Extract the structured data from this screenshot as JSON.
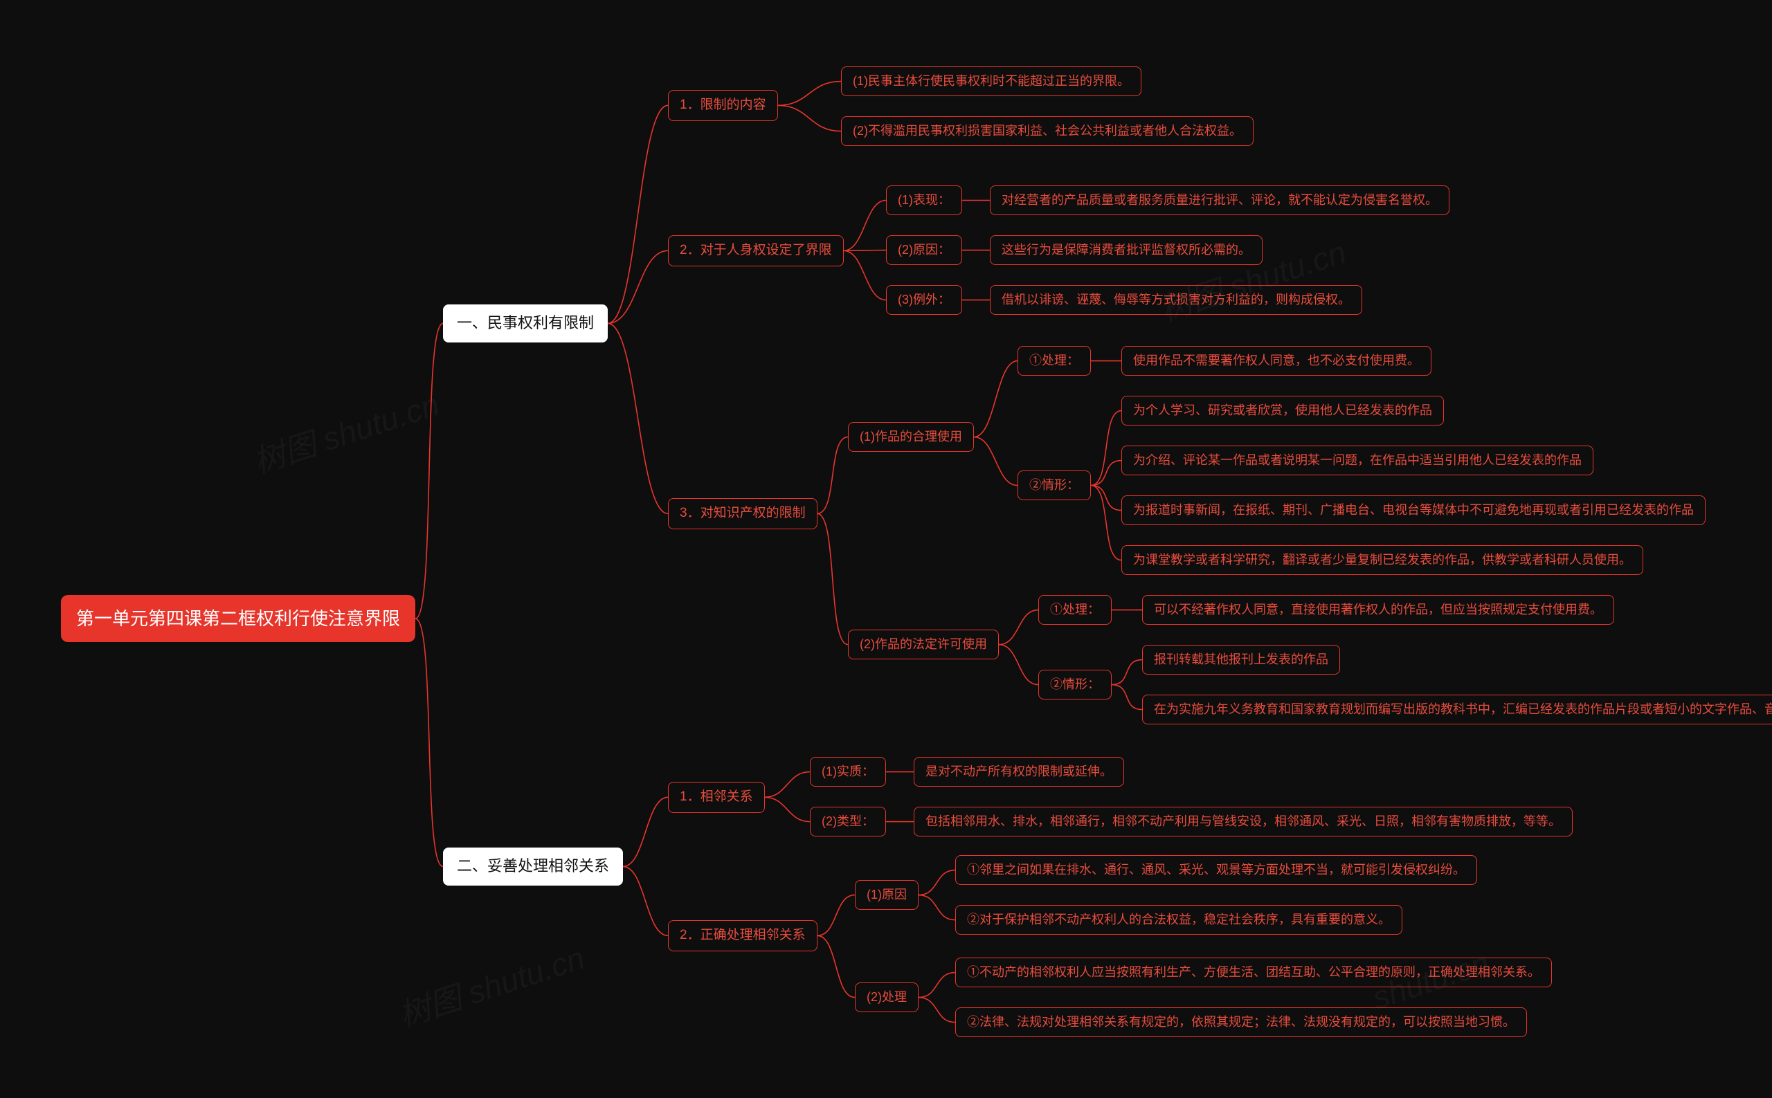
{
  "colors": {
    "background": "#0e0e0e",
    "root_fill": "#e7352c",
    "root_text": "#ffffff",
    "white_fill": "#ffffff",
    "white_text": "#111111",
    "outline_border": "#e7352c",
    "outline_text": "#e84c3d",
    "connector": "#e7352c"
  },
  "fonts": {
    "root_size": 26,
    "level1_size": 22,
    "leaf_size": 19,
    "leaf_size_sm": 18
  },
  "watermarks": [
    "树图 shutu.cn",
    "树图 shutu.cn",
    "树图 shutu.cn",
    "shutu.cn"
  ],
  "root_label": "第一单元第四课第二框权利行使注意界限",
  "l1": {
    "a": "一、民事权利有限制",
    "b": "二、妥善处理相邻关系"
  },
  "l2": {
    "a1": "1．限制的内容",
    "a2": "2．对于人身权设定了界限",
    "a3": "3．对知识产权的限制",
    "b1": "1．相邻关系",
    "b2": "2．正确处理相邻关系"
  },
  "l3": {
    "a11": "(1)民事主体行使民事权利时不能超过正当的界限。",
    "a12": "(2)不得滥用民事权利损害国家利益、社会公共利益或者他人合法权益。",
    "a21": "(1)表现：",
    "a22": "(2)原因：",
    "a23": "(3)例外：",
    "a21t": "对经营者的产品质量或者服务质量进行批评、评论，就不能认定为侵害名誉权。",
    "a22t": "这些行为是保障消费者批评监督权所必需的。",
    "a23t": "借机以诽谤、诬蔑、侮辱等方式损害对方利益的，则构成侵权。",
    "a31": "(1)作品的合理使用",
    "a32": "(2)作品的法定许可使用",
    "b11": "(1)实质：",
    "b12": "(2)类型：",
    "b11t": "是对不动产所有权的限制或延伸。",
    "b12t": "包括相邻用水、排水，相邻通行，相邻不动产利用与管线安设，相邻通风、采光、日照，相邻有害物质排放，等等。",
    "b21": "(1)原因",
    "b22": "(2)处理"
  },
  "l4": {
    "a31_1": "①处理：",
    "a31_1t": "使用作品不需要著作权人同意，也不必支付使用费。",
    "a31_2": "②情形：",
    "a31_2a": "为个人学习、研究或者欣赏，使用他人已经发表的作品",
    "a31_2b": "为介绍、评论某一作品或者说明某一问题，在作品中适当引用他人已经发表的作品",
    "a31_2c": "为报道时事新闻，在报纸、期刊、广播电台、电视台等媒体中不可避免地再现或者引用已经发表的作品",
    "a31_2d": "为课堂教学或者科学研究，翻译或者少量复制已经发表的作品，供教学或者科研人员使用。",
    "a32_1": "①处理：",
    "a32_1t": "可以不经著作权人同意，直接使用著作权人的作品，但应当按照规定支付使用费。",
    "a32_2": "②情形：",
    "a32_2a": "报刊转载其他报刊上发表的作品",
    "a32_2b": "在为实施九年义务教育和国家教育规划而编写出版的教科书中，汇编已经发表的作品片段或者短小的文字作品、音乐作品等。",
    "b21a": "①邻里之间如果在排水、通行、通风、采光、观景等方面处理不当，就可能引发侵权纠纷。",
    "b21b": "②对于保护相邻不动产权利人的合法权益，稳定社会秩序，具有重要的意义。",
    "b22a": "①不动产的相邻权利人应当按照有利生产、方便生活、团结互助、公平合理的原则，正确处理相邻关系。",
    "b22b": "②法律、法规对处理相邻关系有规定的，依照其规定；法律、法规没有规定的，可以按照当地习惯。"
  }
}
